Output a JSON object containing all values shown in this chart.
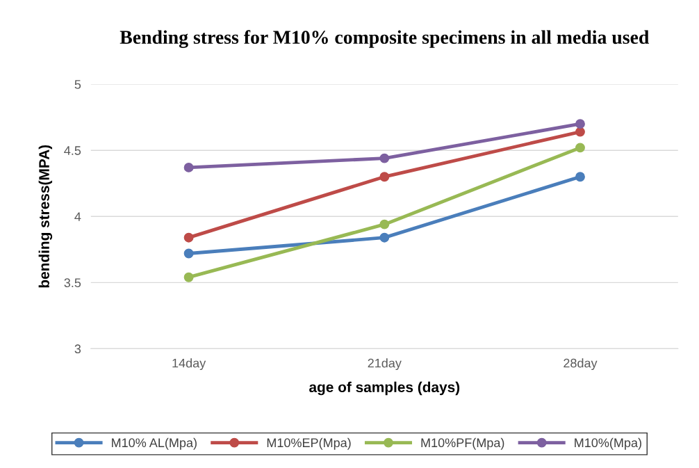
{
  "chart_data": {
    "type": "line",
    "title": "Bending stress for M10% composite specimens in all media used",
    "xlabel": "age of samples (days)",
    "ylabel": "bending stress(MPA)",
    "categories": [
      "14day",
      "21day",
      "28day"
    ],
    "series": [
      {
        "name": "M10% AL(Mpa)",
        "color": "#4a7ebb",
        "values": [
          3.72,
          3.84,
          4.3
        ]
      },
      {
        "name": "M10%EP(Mpa)",
        "color": "#be4b48",
        "values": [
          3.84,
          4.3,
          4.64
        ]
      },
      {
        "name": "M10%PF(Mpa)",
        "color": "#98b954",
        "values": [
          3.54,
          3.94,
          4.52
        ]
      },
      {
        "name": "M10%(Mpa)",
        "color": "#7d60a0",
        "values": [
          4.37,
          4.44,
          4.7
        ]
      }
    ],
    "ylim": [
      3,
      5
    ],
    "yticks": [
      3,
      3.5,
      4,
      4.5,
      5
    ],
    "grid": "y",
    "legend": "bottom",
    "marker": "circle",
    "line_style": "solid"
  }
}
